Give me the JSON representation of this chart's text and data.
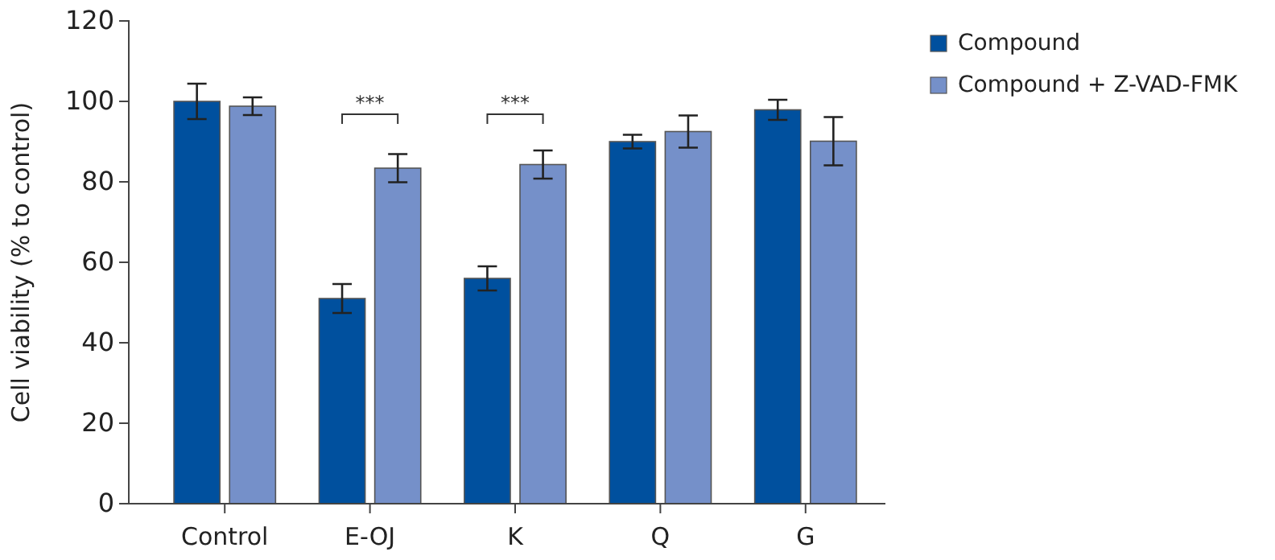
{
  "chart_data": {
    "type": "bar",
    "ylabel": "Cell viability (% to control)",
    "categories": [
      "Control",
      "E-OJ",
      "K",
      "Q",
      "G"
    ],
    "series": [
      {
        "name": "Compound",
        "color": "#00509e",
        "values": [
          100,
          51,
          56,
          90,
          97.9
        ],
        "errors": [
          4.4,
          3.6,
          3,
          1.7,
          2.5
        ]
      },
      {
        "name": "Compound + Z-VAD-FMK",
        "color": "#7590c9",
        "values": [
          98.8,
          83.4,
          84.3,
          92.5,
          90.1
        ],
        "errors": [
          2.2,
          3.5,
          3.5,
          4,
          6
        ]
      }
    ],
    "ylim": [
      0,
      120
    ],
    "yticks": [
      0,
      20,
      40,
      60,
      80,
      100,
      120
    ],
    "grid": false,
    "legend": "top right",
    "annotations": [
      "***",
      "***"
    ]
  }
}
